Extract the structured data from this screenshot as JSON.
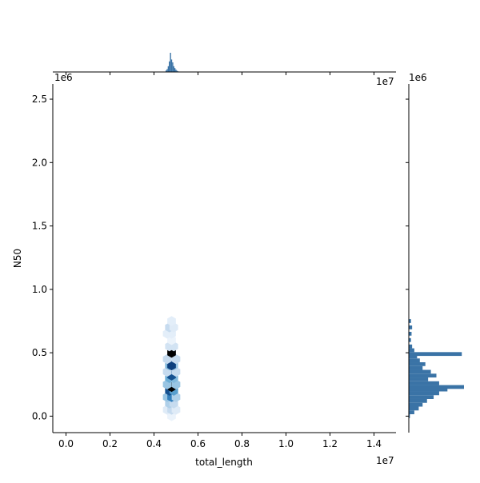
{
  "chart_data": {
    "type": "hexbin-jointplot",
    "xlabel": "total_length",
    "ylabel": "N50",
    "x_tick_labels": [
      "0.0",
      "0.2",
      "0.4",
      "0.6",
      "0.8",
      "1.0",
      "1.2",
      "1.4"
    ],
    "x_ticks": [
      0,
      2000000,
      4000000,
      6000000,
      8000000,
      10000000,
      12000000,
      14000000
    ],
    "y_tick_labels": [
      "0.0",
      "0.5",
      "1.0",
      "1.5",
      "2.0",
      "2.5"
    ],
    "y_ticks": [
      0,
      500000,
      1000000,
      1500000,
      2000000,
      2500000
    ],
    "x_offset_text": "1e7",
    "y_offset_text": "1e6",
    "xlim": [
      -600000,
      15000000
    ],
    "ylim": [
      -130000,
      2620000
    ],
    "hexbins": [
      {
        "x": 4800000,
        "y": 0.0,
        "c": 0.05
      },
      {
        "x": 4600000,
        "y": 50000.0,
        "c": 0.1
      },
      {
        "x": 4800000,
        "y": 50000.0,
        "c": 0.2
      },
      {
        "x": 5000000,
        "y": 50000.0,
        "c": 0.1
      },
      {
        "x": 4700000,
        "y": 100000.0,
        "c": 0.25
      },
      {
        "x": 4900000,
        "y": 100000.0,
        "c": 0.2
      },
      {
        "x": 4600000,
        "y": 150000.0,
        "c": 0.3
      },
      {
        "x": 4800000,
        "y": 150000.0,
        "c": 0.55
      },
      {
        "x": 5000000,
        "y": 150000.0,
        "c": 0.25
      },
      {
        "x": 4700000,
        "y": 200000.0,
        "c": 0.7
      },
      {
        "x": 4900000,
        "y": 200000.0,
        "c": 0.45
      },
      {
        "x": 4800000,
        "y": 230000.0,
        "c": 1.0
      },
      {
        "x": 4600000,
        "y": 250000.0,
        "c": 0.3
      },
      {
        "x": 5000000,
        "y": 250000.0,
        "c": 0.3
      },
      {
        "x": 4700000,
        "y": 300000.0,
        "c": 0.4
      },
      {
        "x": 4900000,
        "y": 300000.0,
        "c": 0.35
      },
      {
        "x": 4800000,
        "y": 320000.0,
        "c": 0.7
      },
      {
        "x": 4600000,
        "y": 350000.0,
        "c": 0.2
      },
      {
        "x": 5000000,
        "y": 350000.0,
        "c": 0.2
      },
      {
        "x": 4700000,
        "y": 400000.0,
        "c": 0.35
      },
      {
        "x": 4900000,
        "y": 400000.0,
        "c": 0.3
      },
      {
        "x": 4800000,
        "y": 400000.0,
        "c": 0.75
      },
      {
        "x": 4600000,
        "y": 450000.0,
        "c": 0.2
      },
      {
        "x": 5000000,
        "y": 450000.0,
        "c": 0.2
      },
      {
        "x": 4800000,
        "y": 500000.0,
        "c": 1.0
      },
      {
        "x": 4700000,
        "y": 550000.0,
        "c": 0.15
      },
      {
        "x": 4900000,
        "y": 550000.0,
        "c": 0.15
      },
      {
        "x": 4800000,
        "y": 600000.0,
        "c": 0.05
      },
      {
        "x": 4600000,
        "y": 650000.0,
        "c": 0.08
      },
      {
        "x": 4800000,
        "y": 650000.0,
        "c": 0.08
      },
      {
        "x": 4700000,
        "y": 700000.0,
        "c": 0.2
      },
      {
        "x": 4900000,
        "y": 700000.0,
        "c": 0.1
      },
      {
        "x": 4800000,
        "y": 750000.0,
        "c": 0.08
      }
    ],
    "colormap": [
      "#f7fbff",
      "#c6dbef",
      "#6baed6",
      "#2171b5",
      "#08306b",
      "#000000"
    ],
    "marginal_color": "#3a73a6",
    "x_marginal": [
      {
        "x": 4550000,
        "h": 0.08
      },
      {
        "x": 4600000,
        "h": 0.15
      },
      {
        "x": 4650000,
        "h": 0.3
      },
      {
        "x": 4700000,
        "h": 0.55
      },
      {
        "x": 4750000,
        "h": 1.0
      },
      {
        "x": 4800000,
        "h": 0.65
      },
      {
        "x": 4850000,
        "h": 0.5
      },
      {
        "x": 4900000,
        "h": 0.3
      },
      {
        "x": 4950000,
        "h": 0.2
      },
      {
        "x": 5000000,
        "h": 0.12
      },
      {
        "x": 5050000,
        "h": 0.06
      },
      {
        "x": 5100000,
        "h": 0.03
      }
    ],
    "y_marginal": [
      {
        "y": 0.0,
        "w": 0.02
      },
      {
        "y": 30000.0,
        "w": 0.1
      },
      {
        "y": 60000.0,
        "w": 0.18
      },
      {
        "y": 90000.0,
        "w": 0.25
      },
      {
        "y": 120000.0,
        "w": 0.33
      },
      {
        "y": 150000.0,
        "w": 0.45
      },
      {
        "y": 180000.0,
        "w": 0.55
      },
      {
        "y": 210000.0,
        "w": 0.7
      },
      {
        "y": 230000.0,
        "w": 1.0
      },
      {
        "y": 260000.0,
        "w": 0.55
      },
      {
        "y": 290000.0,
        "w": 0.35
      },
      {
        "y": 320000.0,
        "w": 0.5
      },
      {
        "y": 350000.0,
        "w": 0.4
      },
      {
        "y": 380000.0,
        "w": 0.25
      },
      {
        "y": 410000.0,
        "w": 0.3
      },
      {
        "y": 440000.0,
        "w": 0.2
      },
      {
        "y": 470000.0,
        "w": 0.15
      },
      {
        "y": 490000.0,
        "w": 0.96
      },
      {
        "y": 520000.0,
        "w": 0.1
      },
      {
        "y": 550000.0,
        "w": 0.06
      },
      {
        "y": 600000.0,
        "w": 0.04
      },
      {
        "y": 650000.0,
        "w": 0.05
      },
      {
        "y": 700000.0,
        "w": 0.06
      },
      {
        "y": 750000.0,
        "w": 0.04
      }
    ]
  }
}
